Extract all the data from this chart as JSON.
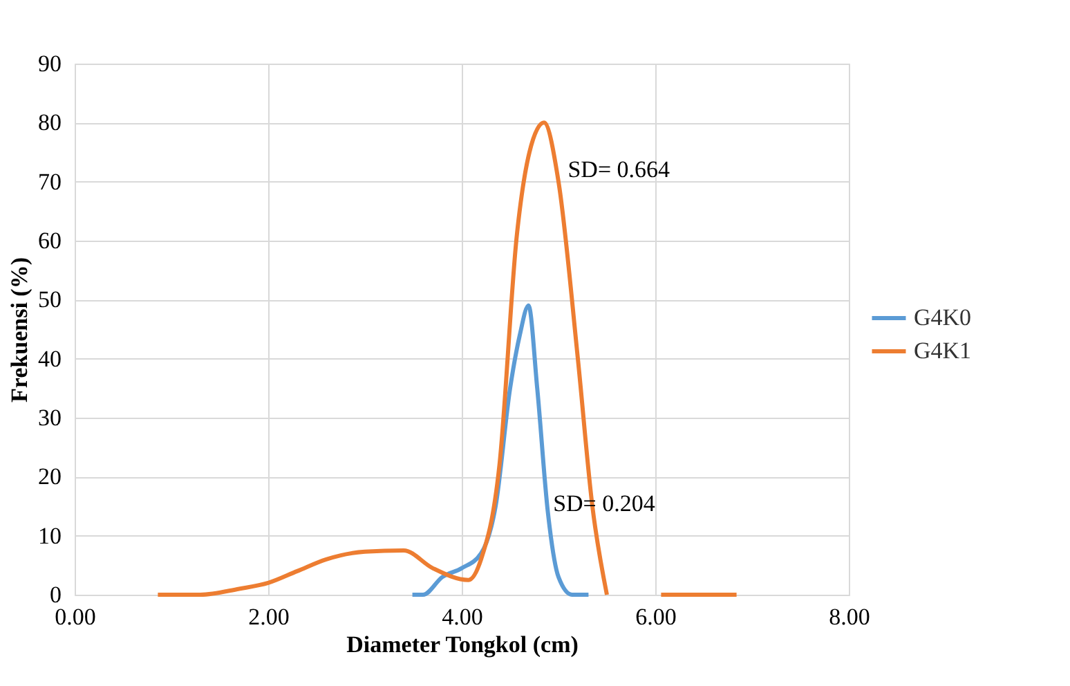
{
  "chart_data": {
    "type": "line",
    "xlabel": "Diameter Tongkol (cm)",
    "ylabel": "Frekuensi (%)",
    "xlim": [
      0,
      8
    ],
    "xticks": [
      {
        "value": 0,
        "label": "0.00"
      },
      {
        "value": 2,
        "label": "2.00"
      },
      {
        "value": 4,
        "label": "4.00"
      },
      {
        "value": 6,
        "label": "6.00"
      },
      {
        "value": 8,
        "label": "8.00"
      }
    ],
    "ylim": [
      0,
      90
    ],
    "yticks": [
      0,
      10,
      20,
      30,
      40,
      50,
      60,
      70,
      80,
      90
    ],
    "grid": true,
    "legend": "right",
    "marker": "none",
    "line_style": "solid",
    "series": [
      {
        "name": "G4K0",
        "color": "#5b9bd5",
        "x": [
          3.49,
          3.6,
          3.8,
          4.0,
          4.2,
          4.35,
          4.5,
          4.6,
          4.69,
          4.78,
          4.89,
          5.0,
          5.14,
          5.31
        ],
        "values": [
          0,
          0,
          3,
          4.5,
          7,
          15,
          35,
          44,
          49,
          35,
          14,
          3,
          0,
          0
        ]
      },
      {
        "name": "G4K1",
        "color": "#ed7d31",
        "x": [
          0.86,
          1.3,
          1.7,
          2.0,
          2.3,
          2.6,
          3.0,
          3.4,
          3.7,
          4.07,
          4.2,
          4.39,
          4.57,
          4.7,
          4.85,
          5.0,
          5.2,
          5.35,
          5.5,
          5.8,
          6.06,
          6.84
        ],
        "values": [
          0,
          0,
          1,
          2,
          4,
          6,
          7.3,
          7.5,
          4.5,
          2.5,
          6,
          22,
          61,
          75,
          80,
          70,
          40,
          15,
          0,
          null,
          0,
          0
        ]
      }
    ],
    "annotations": [
      "SD= 0.664",
      "SD= 0.204"
    ]
  }
}
